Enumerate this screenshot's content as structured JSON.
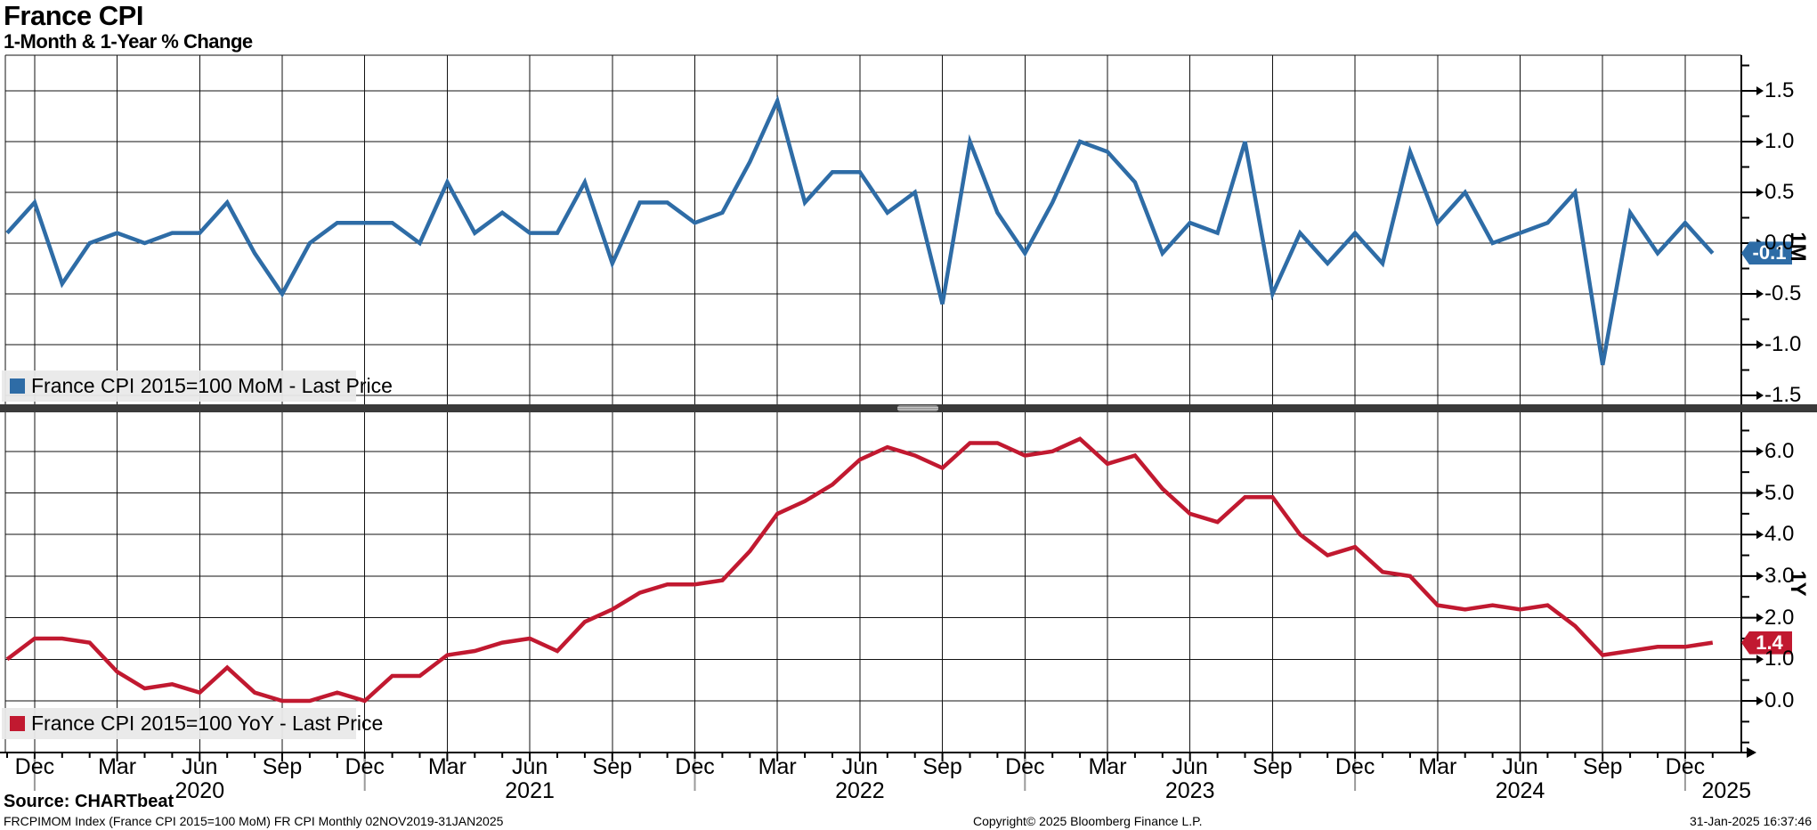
{
  "header": {
    "title": "France CPI",
    "subtitle": "1-Month & 1-Year % Change"
  },
  "chart_data": [
    {
      "type": "line",
      "panel_id": "top",
      "axis_label": "1M",
      "legend": "France CPI 2015=100 MoM - Last Price",
      "series_color": "#2E6CA6",
      "last_price_tag": "-0.1",
      "ylim": [
        -1.57,
        1.85
      ],
      "yticks_major": [
        1.5,
        1.0,
        0.5,
        0.0,
        -0.5,
        -1.0,
        -1.5
      ],
      "ytick_minor_step": 0.25,
      "grid": true,
      "x_range": "Nov 2019 - Jan 2025 (monthly)",
      "values": [
        0.1,
        0.4,
        -0.4,
        0.0,
        0.1,
        0.0,
        0.1,
        0.1,
        0.4,
        -0.1,
        -0.5,
        0.0,
        0.2,
        0.2,
        0.2,
        0.0,
        0.6,
        0.1,
        0.3,
        0.1,
        0.1,
        0.6,
        -0.2,
        0.4,
        0.4,
        0.2,
        0.3,
        0.8,
        1.4,
        0.4,
        0.7,
        0.7,
        0.3,
        0.5,
        -0.6,
        1.0,
        0.3,
        -0.1,
        0.4,
        1.0,
        0.9,
        0.6,
        -0.1,
        0.2,
        0.1,
        1.0,
        -0.5,
        0.1,
        -0.2,
        0.1,
        -0.2,
        0.9,
        0.2,
        0.5,
        0.0,
        0.1,
        0.2,
        0.5,
        -1.2,
        0.3,
        -0.1,
        0.2,
        -0.1
      ]
    },
    {
      "type": "line",
      "panel_id": "bottom",
      "axis_label": "1Y",
      "legend": "France CPI 2015=100 YoY - Last Price",
      "series_color": "#C11930",
      "last_price_tag": "1.4",
      "ylim": [
        -1.24,
        6.92
      ],
      "yticks_major": [
        6.0,
        5.0,
        4.0,
        3.0,
        2.0,
        1.0,
        0.0
      ],
      "ytick_minor_step": 0.5,
      "grid": true,
      "x_range": "Nov 2019 - Jan 2025 (monthly)",
      "values": [
        1.0,
        1.5,
        1.5,
        1.4,
        0.7,
        0.3,
        0.4,
        0.2,
        0.8,
        0.2,
        0.0,
        0.0,
        0.2,
        0.0,
        0.6,
        0.6,
        1.1,
        1.2,
        1.4,
        1.5,
        1.2,
        1.9,
        2.2,
        2.6,
        2.8,
        2.8,
        2.9,
        3.6,
        4.5,
        4.8,
        5.2,
        5.8,
        6.1,
        5.9,
        5.6,
        6.2,
        6.2,
        5.9,
        6.0,
        6.3,
        5.7,
        5.9,
        5.1,
        4.5,
        4.3,
        4.9,
        4.9,
        4.0,
        3.5,
        3.7,
        3.1,
        3.0,
        2.3,
        2.2,
        2.3,
        2.2,
        2.3,
        1.8,
        1.1,
        1.2,
        1.3,
        1.3,
        1.4
      ]
    }
  ],
  "x_axis": {
    "n_points": 63,
    "quarter_labels": [
      {
        "i": 1,
        "label": "Dec"
      },
      {
        "i": 4,
        "label": "Mar"
      },
      {
        "i": 7,
        "label": "Jun"
      },
      {
        "i": 10,
        "label": "Sep"
      },
      {
        "i": 13,
        "label": "Dec"
      },
      {
        "i": 16,
        "label": "Mar"
      },
      {
        "i": 19,
        "label": "Jun"
      },
      {
        "i": 22,
        "label": "Sep"
      },
      {
        "i": 25,
        "label": "Dec"
      },
      {
        "i": 28,
        "label": "Mar"
      },
      {
        "i": 31,
        "label": "Jun"
      },
      {
        "i": 34,
        "label": "Sep"
      },
      {
        "i": 37,
        "label": "Dec"
      },
      {
        "i": 40,
        "label": "Mar"
      },
      {
        "i": 43,
        "label": "Jun"
      },
      {
        "i": 46,
        "label": "Sep"
      },
      {
        "i": 49,
        "label": "Dec"
      },
      {
        "i": 52,
        "label": "Mar"
      },
      {
        "i": 55,
        "label": "Jun"
      },
      {
        "i": 58,
        "label": "Sep"
      },
      {
        "i": 61,
        "label": "Dec"
      }
    ],
    "year_labels": [
      {
        "i": 7,
        "label": "2020"
      },
      {
        "i": 19,
        "label": "2021"
      },
      {
        "i": 31,
        "label": "2022"
      },
      {
        "i": 43,
        "label": "2023"
      },
      {
        "i": 55,
        "label": "2024"
      },
      {
        "i": 62.5,
        "label": "2025"
      }
    ],
    "year_separators_at": [
      1,
      13,
      25,
      37,
      49,
      61
    ]
  },
  "footer": {
    "source": "Source: CHARTbeat",
    "ticker_line": "FRCPIMOM Index (France CPI 2015=100 MoM) FR CPI  Monthly 02NOV2019-31JAN2025",
    "copyright": "Copyright© 2025 Bloomberg Finance L.P.",
    "timestamp": "31-Jan-2025 16:37:46"
  },
  "colors": {
    "mom_blue": "#2E6CA6",
    "yoy_red": "#C11930",
    "grid": "#111111",
    "divider": "#3a3a3a",
    "legend_bg": "#e9e9e9"
  }
}
